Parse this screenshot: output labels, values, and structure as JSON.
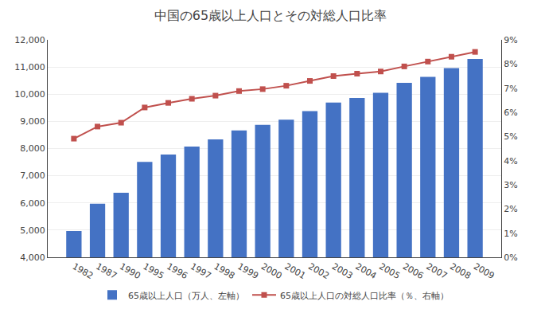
{
  "chart_data": {
    "type": "bar",
    "title": "中国の65歳以上人口とその対総人口比率",
    "categories": [
      "1982",
      "1987",
      "1990",
      "1995",
      "1996",
      "1997",
      "1998",
      "1999",
      "2000",
      "2001",
      "2002",
      "2003",
      "2004",
      "2005",
      "2006",
      "2007",
      "2008",
      "2009"
    ],
    "series": [
      {
        "name": "65歳以上人口（万人、左軸）",
        "type": "bar",
        "color": "#4472C4",
        "values": [
          4970,
          5970,
          6370,
          7510,
          7780,
          8070,
          8340,
          8670,
          8870,
          9060,
          9380,
          9690,
          9860,
          10050,
          10420,
          10640,
          10960,
          11300
        ]
      },
      {
        "name": "65歳以上人口の対総人口比率（％、右軸）",
        "type": "line",
        "axis": "y2",
        "color": "#C0504D",
        "marker": "square",
        "line_style": "solid",
        "values": [
          4.91,
          5.41,
          5.57,
          6.2,
          6.39,
          6.56,
          6.69,
          6.88,
          6.96,
          7.1,
          7.3,
          7.5,
          7.6,
          7.69,
          7.9,
          8.1,
          8.3,
          8.5
        ]
      }
    ],
    "ylim": [
      4000,
      12000
    ],
    "yticks": [
      {
        "value": 4000,
        "label": "4,000"
      },
      {
        "value": 5000,
        "label": "5,000"
      },
      {
        "value": 6000,
        "label": "6,000"
      },
      {
        "value": 7000,
        "label": "7,000"
      },
      {
        "value": 8000,
        "label": "8,000"
      },
      {
        "value": 9000,
        "label": "9,000"
      },
      {
        "value": 10000,
        "label": "10,000"
      },
      {
        "value": 11000,
        "label": "11,000"
      },
      {
        "value": 12000,
        "label": "12,000"
      }
    ],
    "y2lim": [
      0,
      9
    ],
    "y2ticks": [
      {
        "value": 0,
        "label": "0%"
      },
      {
        "value": 1,
        "label": "1%"
      },
      {
        "value": 2,
        "label": "2%"
      },
      {
        "value": 3,
        "label": "3%"
      },
      {
        "value": 4,
        "label": "4%"
      },
      {
        "value": 5,
        "label": "5%"
      },
      {
        "value": 6,
        "label": "6%"
      },
      {
        "value": 7,
        "label": "7%"
      },
      {
        "value": 8,
        "label": "8%"
      },
      {
        "value": 9,
        "label": "9%"
      }
    ],
    "grid": true,
    "legend": "bottom"
  }
}
